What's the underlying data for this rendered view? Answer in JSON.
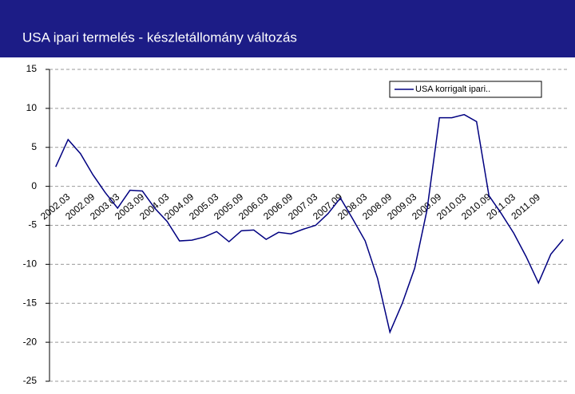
{
  "chart_data": {
    "type": "line",
    "title": "USA ipari termelés - készletállomány változás",
    "categories": [
      "2002.03",
      null,
      "2002.09",
      null,
      "2003.03",
      null,
      "2003.09",
      null,
      "2004.03",
      null,
      "2004.09",
      null,
      "2005.03",
      null,
      "2005.09",
      null,
      "2006.03",
      null,
      "2006.09",
      null,
      "2007.03",
      null,
      "2007.09",
      null,
      "2008.03",
      null,
      "2008.09",
      null,
      "2009.03",
      null,
      "2009.09",
      null,
      "2010.03",
      null,
      "2010.09",
      null,
      "2011.03",
      null,
      "2011.09",
      null,
      null,
      null
    ],
    "series": [
      {
        "name": "USA korrigalt ipari..",
        "color": "#000080",
        "values": [
          2.5,
          6.0,
          4.2,
          1.5,
          -0.8,
          -2.8,
          -0.5,
          -0.6,
          -2.8,
          -4.5,
          -7.0,
          -6.9,
          -6.5,
          -5.8,
          -7.1,
          -5.7,
          -5.6,
          -6.8,
          -5.9,
          -6.1,
          -5.5,
          -5.0,
          -3.5,
          -1.5,
          -4.2,
          -7.0,
          -11.8,
          -18.7,
          -15.0,
          -10.5,
          -3.0,
          8.8,
          8.8,
          9.2,
          8.3,
          -1.2,
          -3.5,
          -6.0,
          -9.0,
          -12.4,
          -8.7,
          -6.8
        ]
      }
    ],
    "ylim": [
      -25,
      15
    ],
    "yticks": [
      -25,
      -20,
      -15,
      -10,
      -5,
      0,
      5,
      10,
      15
    ],
    "grid": true,
    "legend": "upper right"
  }
}
